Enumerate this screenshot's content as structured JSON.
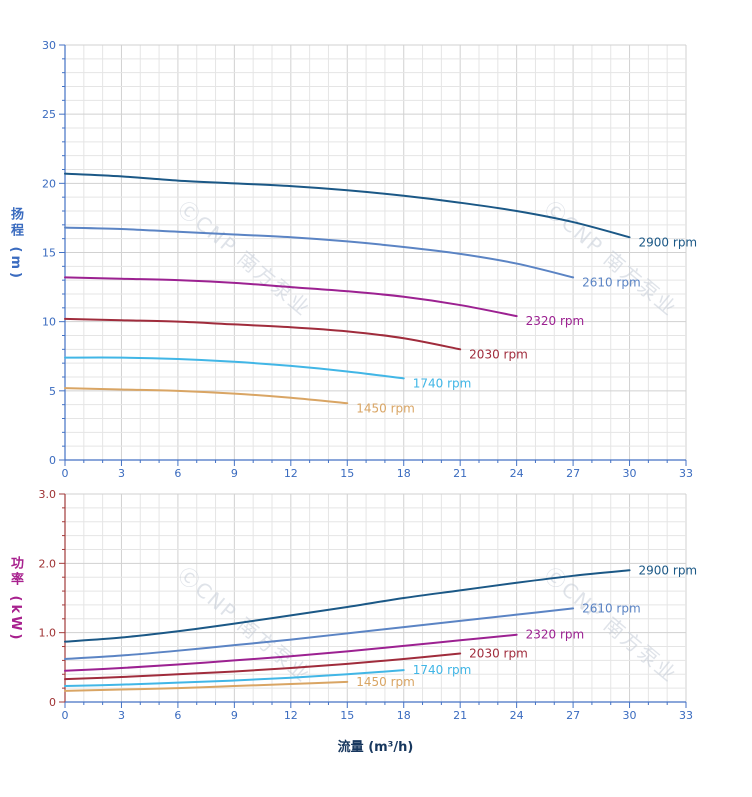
{
  "watermark": "ⒸCNP 南方泵业",
  "colors": {
    "grid_minor": "#e5e5e5",
    "grid_major": "#d1d1d1",
    "watermark": "#c6cdd8",
    "x_label": "#17375e"
  },
  "chart_data": [
    {
      "type": "line",
      "title": "",
      "ylabel": "扬程 (m)",
      "ylabel_color": "#3a6bbf",
      "xlabel": "",
      "xlim": [
        0,
        33
      ],
      "ylim": [
        0,
        30
      ],
      "grid": true,
      "legend_position": "end-of-line-labels",
      "xticks": [
        0,
        3,
        6,
        9,
        12,
        15,
        18,
        21,
        24,
        27,
        30,
        33
      ],
      "ytick_values": [
        0,
        5,
        10,
        15,
        20,
        25,
        30
      ],
      "ytick_labels": [
        "0",
        "5",
        "10",
        "15",
        "20",
        "25",
        "30"
      ],
      "x_minor_step": 1,
      "y_minor_step": 1,
      "yaxis_color": "#4472c4",
      "xaxis_color": "#4472c4",
      "ytick_color": "#3a6bbf",
      "xtick_color": "#3a6bbf",
      "series": [
        {
          "name": "2900 rpm",
          "color": "#1b5886",
          "x": [
            0,
            3,
            6,
            9,
            12,
            15,
            18,
            21,
            24,
            27,
            30
          ],
          "y": [
            20.7,
            20.5,
            20.2,
            20.0,
            19.8,
            19.5,
            19.1,
            18.6,
            18.0,
            17.2,
            16.1
          ]
        },
        {
          "name": "2610 rpm",
          "color": "#5b84c4",
          "x": [
            0,
            3,
            6,
            9,
            12,
            15,
            18,
            21,
            24,
            27
          ],
          "y": [
            16.8,
            16.7,
            16.5,
            16.3,
            16.1,
            15.8,
            15.4,
            14.9,
            14.2,
            13.2
          ]
        },
        {
          "name": "2320 rpm",
          "color": "#9c2191",
          "x": [
            0,
            3,
            6,
            9,
            12,
            15,
            18,
            21,
            24
          ],
          "y": [
            13.2,
            13.1,
            13.0,
            12.8,
            12.5,
            12.2,
            11.8,
            11.2,
            10.4
          ]
        },
        {
          "name": "2030 rpm",
          "color": "#a02c3c",
          "x": [
            0,
            3,
            6,
            9,
            12,
            15,
            18,
            21
          ],
          "y": [
            10.2,
            10.1,
            10.0,
            9.8,
            9.6,
            9.3,
            8.8,
            8.0
          ]
        },
        {
          "name": "1740 rpm",
          "color": "#41b6e6",
          "x": [
            0,
            3,
            6,
            9,
            12,
            15,
            18
          ],
          "y": [
            7.4,
            7.4,
            7.3,
            7.1,
            6.8,
            6.4,
            5.9
          ]
        },
        {
          "name": "1450 rpm",
          "color": "#d9a564",
          "x": [
            0,
            3,
            6,
            9,
            12,
            15
          ],
          "y": [
            5.2,
            5.1,
            5.0,
            4.8,
            4.5,
            4.1
          ]
        }
      ]
    },
    {
      "type": "line",
      "title": "",
      "ylabel": "功率 (kW)",
      "ylabel_color": "#a8218e",
      "xlabel": "流量 (m³/h)",
      "xlim": [
        0,
        33
      ],
      "ylim": [
        0,
        3
      ],
      "grid": true,
      "legend_position": "end-of-line-labels",
      "xticks": [
        0,
        3,
        6,
        9,
        12,
        15,
        18,
        21,
        24,
        27,
        30,
        33
      ],
      "ytick_values": [
        0,
        1,
        2,
        3
      ],
      "ytick_labels": [
        "0",
        "1.0",
        "2.0",
        "3.0"
      ],
      "x_minor_step": 1,
      "y_minor_step": 0.2,
      "yaxis_color": "#a23b3b",
      "xaxis_color": "#4472c4",
      "ytick_color": "#9e3132",
      "xtick_color": "#3a6bbf",
      "series": [
        {
          "name": "2900 rpm",
          "color": "#1b5886",
          "x": [
            0,
            3,
            6,
            9,
            12,
            15,
            18,
            21,
            24,
            27,
            30
          ],
          "y": [
            0.87,
            0.93,
            1.02,
            1.13,
            1.25,
            1.37,
            1.5,
            1.61,
            1.72,
            1.82,
            1.9
          ]
        },
        {
          "name": "2610 rpm",
          "color": "#5b84c4",
          "x": [
            0,
            3,
            6,
            9,
            12,
            15,
            18,
            21,
            24,
            27
          ],
          "y": [
            0.62,
            0.67,
            0.74,
            0.82,
            0.9,
            0.99,
            1.08,
            1.17,
            1.26,
            1.35
          ]
        },
        {
          "name": "2320 rpm",
          "color": "#9c2191",
          "x": [
            0,
            3,
            6,
            9,
            12,
            15,
            18,
            21,
            24
          ],
          "y": [
            0.45,
            0.49,
            0.54,
            0.6,
            0.66,
            0.73,
            0.81,
            0.89,
            0.97
          ]
        },
        {
          "name": "2030 rpm",
          "color": "#a02c3c",
          "x": [
            0,
            3,
            6,
            9,
            12,
            15,
            18,
            21
          ],
          "y": [
            0.33,
            0.36,
            0.4,
            0.44,
            0.49,
            0.55,
            0.62,
            0.7
          ]
        },
        {
          "name": "1740 rpm",
          "color": "#41b6e6",
          "x": [
            0,
            3,
            6,
            9,
            12,
            15,
            18
          ],
          "y": [
            0.23,
            0.25,
            0.28,
            0.31,
            0.35,
            0.4,
            0.46
          ]
        },
        {
          "name": "1450 rpm",
          "color": "#d9a564",
          "x": [
            0,
            3,
            6,
            9,
            12,
            15
          ],
          "y": [
            0.16,
            0.18,
            0.2,
            0.23,
            0.26,
            0.29
          ]
        }
      ]
    }
  ]
}
